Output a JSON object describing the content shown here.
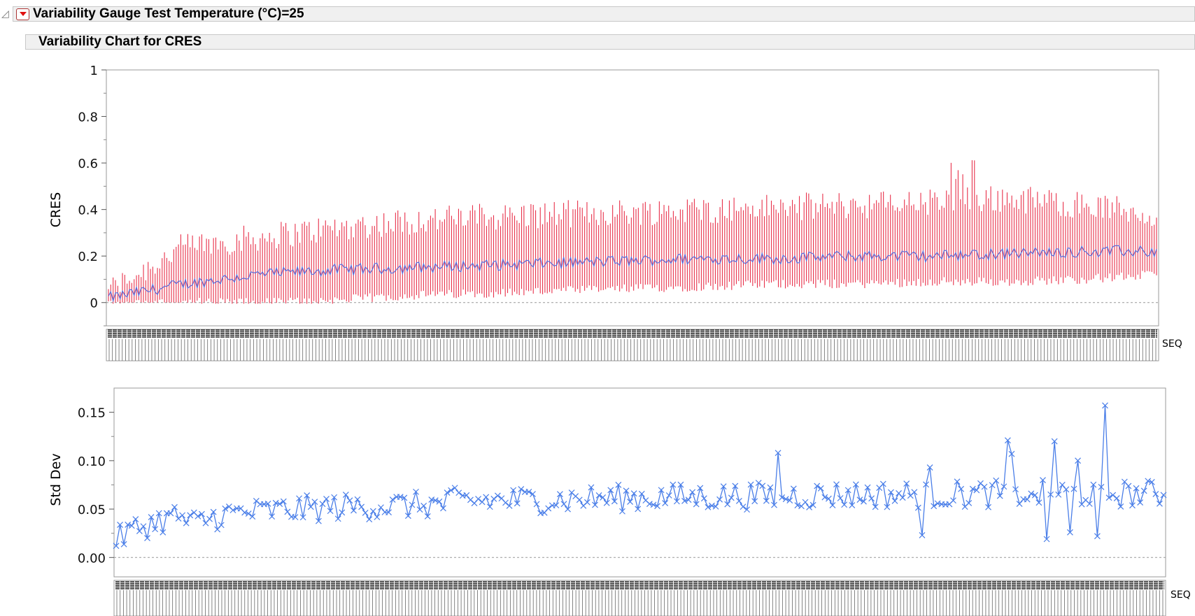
{
  "header": {
    "title": "Variability Gauge Test Temperature (°C)=25",
    "subtitle": "Variability Chart for CRES"
  },
  "chart_data": [
    {
      "type": "line",
      "ylabel": "CRES",
      "xlabel": "SEQ",
      "ylim": [
        -0.1,
        1.0
      ],
      "yticks": [
        0,
        0.2,
        0.4,
        0.6,
        0.8,
        1
      ],
      "ytick_labels": [
        "0",
        "0.2",
        "0.4",
        "0.6",
        "0.8",
        "1"
      ],
      "reference_line": 0,
      "n_groups": 450,
      "series": [
        {
          "name": "",
          "color": "#e8304a",
          "role": "range bars (min–max per SEQ)"
        },
        {
          "name": "",
          "color": "#5a6ad8",
          "role": "group means"
        }
      ],
      "trend_means": [
        0.02,
        0.08,
        0.12,
        0.14,
        0.15,
        0.16,
        0.17,
        0.18,
        0.19,
        0.19,
        0.2,
        0.2,
        0.21,
        0.22,
        0.22
      ],
      "trend_max": [
        0.05,
        0.24,
        0.28,
        0.32,
        0.35,
        0.37,
        0.38,
        0.39,
        0.4,
        0.41,
        0.42,
        0.43,
        0.45,
        0.42,
        0.38
      ],
      "trend_min": [
        0.0,
        0.0,
        0.0,
        0.01,
        0.03,
        0.04,
        0.05,
        0.06,
        0.07,
        0.08,
        0.08,
        0.09,
        0.09,
        0.1,
        0.12
      ]
    },
    {
      "type": "line",
      "ylabel": "Std Dev",
      "xlabel": "SEQ",
      "ylim": [
        -0.02,
        0.175
      ],
      "yticks": [
        0.0,
        0.05,
        0.1,
        0.15
      ],
      "ytick_labels": [
        "0.00",
        "0.05",
        "0.10",
        "0.15"
      ],
      "reference_line": 0,
      "n_points": 270,
      "series": [
        {
          "name": "",
          "color": "#4a7ee8"
        }
      ],
      "trend": [
        0.012,
        0.045,
        0.052,
        0.055,
        0.057,
        0.059,
        0.06,
        0.062,
        0.063,
        0.064,
        0.065,
        0.065,
        0.066,
        0.066,
        0.066
      ],
      "notable_points": [
        {
          "i": 0,
          "v": 0.012
        },
        {
          "i": 170,
          "v": 0.108
        },
        {
          "i": 207,
          "v": 0.023
        },
        {
          "i": 209,
          "v": 0.093
        },
        {
          "i": 229,
          "v": 0.121
        },
        {
          "i": 230,
          "v": 0.107
        },
        {
          "i": 235,
          "v": 0.066
        },
        {
          "i": 239,
          "v": 0.019
        },
        {
          "i": 241,
          "v": 0.12
        },
        {
          "i": 245,
          "v": 0.026
        },
        {
          "i": 247,
          "v": 0.1
        },
        {
          "i": 252,
          "v": 0.022
        },
        {
          "i": 254,
          "v": 0.157
        }
      ]
    }
  ]
}
